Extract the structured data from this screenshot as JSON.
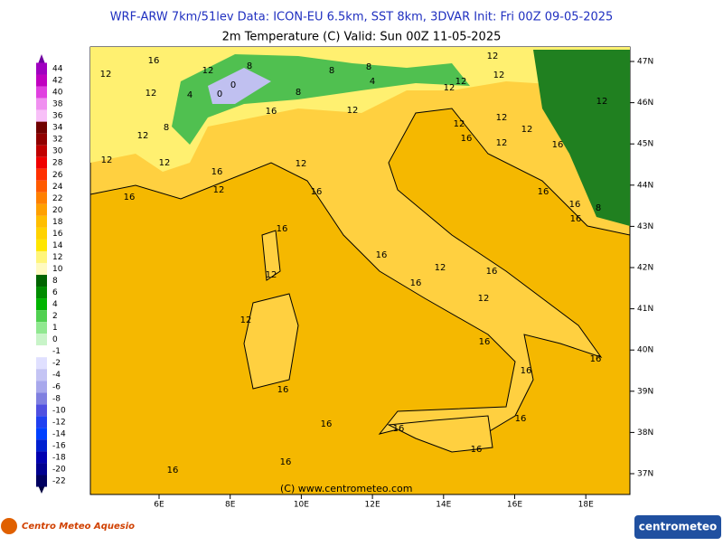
{
  "header": {
    "title": "WRF-ARW 7km/51lev   Data: ICON-EU 6.5km, SST 8km, 3DVAR   Init: Fri 00Z 09-05-2025",
    "subtitle": "2m Temperature (C)   Valid: Sun 00Z 11-05-2025"
  },
  "colorbar": {
    "labels": [
      "44",
      "42",
      "40",
      "38",
      "36",
      "34",
      "32",
      "30",
      "28",
      "26",
      "24",
      "22",
      "20",
      "18",
      "16",
      "14",
      "12",
      "10",
      "8",
      "6",
      "4",
      "2",
      "1",
      "0",
      "-1",
      "-2",
      "-4",
      "-6",
      "-8",
      "-10",
      "-12",
      "-14",
      "-16",
      "-18",
      "-20",
      "-22"
    ],
    "colors": [
      "#a000c0",
      "#c000c0",
      "#e040e0",
      "#f090f0",
      "#f8c0f8",
      "#700000",
      "#900000",
      "#c00000",
      "#f00000",
      "#ff3000",
      "#ff5a00",
      "#ff8000",
      "#ffa000",
      "#ffbe00",
      "#ffd200",
      "#ffe600",
      "#fff57a",
      "#fffac0",
      "#006400",
      "#008c00",
      "#00b400",
      "#50d050",
      "#90e890",
      "#c8f4c8",
      "#ffffff",
      "#e0e0ff",
      "#c4c4f4",
      "#a8a8ec",
      "#8080e0",
      "#5050e0",
      "#2040f0",
      "#0040ff",
      "#0020d0",
      "#0000b0",
      "#000090",
      "#000060"
    ]
  },
  "map": {
    "lat_labels": [
      "47N",
      "46N",
      "45N",
      "44N",
      "43N",
      "42N",
      "41N",
      "40N",
      "39N",
      "38N",
      "37N"
    ],
    "lon_labels": [
      "6E",
      "8E",
      "10E",
      "12E",
      "14E",
      "16E",
      "18E"
    ],
    "contour_labels": [
      "16",
      "12",
      "12",
      "12",
      "8",
      "4",
      "0",
      "0",
      "8",
      "8",
      "4",
      "12",
      "12",
      "8",
      "12",
      "16",
      "8",
      "12",
      "12",
      "12",
      "12",
      "16",
      "12",
      "12",
      "12",
      "12",
      "16",
      "12",
      "12",
      "16",
      "12",
      "12",
      "8",
      "16",
      "16",
      "16",
      "12",
      "16",
      "16",
      "12",
      "16",
      "12",
      "12",
      "16",
      "16",
      "16",
      "16",
      "16",
      "16",
      "16",
      "16",
      "16",
      "16",
      "16",
      "16",
      "16"
    ],
    "copyright": "(C) www.centrometeo.com"
  },
  "footer": {
    "left_logo": "Centro Meteo Aquesio",
    "right_logo": "centrometeo"
  }
}
